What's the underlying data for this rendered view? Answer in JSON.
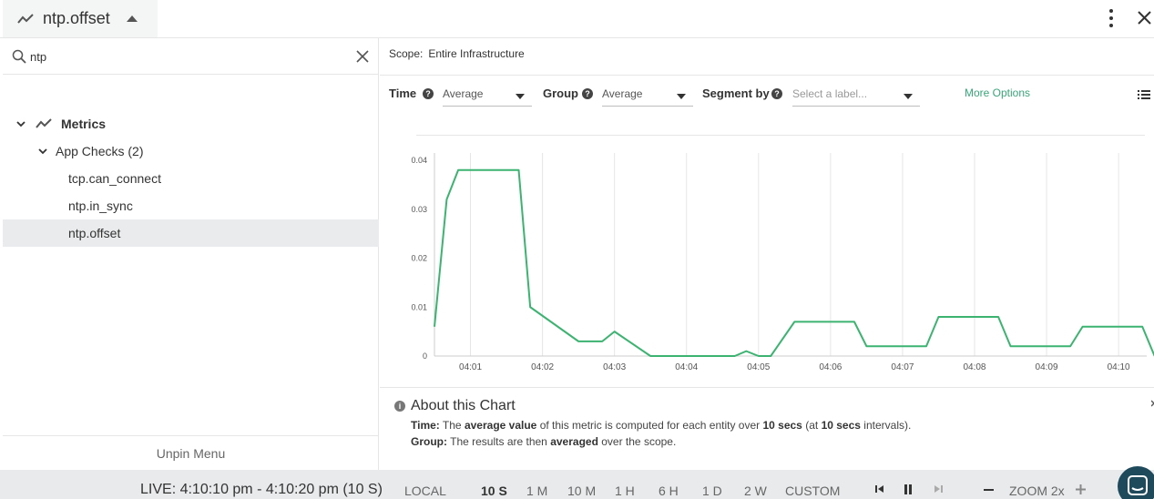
{
  "header": {
    "title": "ntp.offset",
    "icon": "line-chart-icon"
  },
  "search": {
    "value": "ntp",
    "placeholder": ""
  },
  "tree": {
    "metrics_label": "Metrics",
    "group_label": "App Checks (2)",
    "items": [
      "tcp.can_connect",
      "ntp.in_sync",
      "ntp.offset"
    ],
    "selected": "ntp.offset"
  },
  "unpin_label": "Unpin Menu",
  "scope": {
    "label": "Scope:",
    "value": "Entire Infrastructure"
  },
  "options": {
    "time_label": "Time",
    "time_value": "Average",
    "group_label": "Group",
    "group_value": "Average",
    "segment_label": "Segment by",
    "segment_placeholder": "Select a label...",
    "more_options": "More Options"
  },
  "chart_data": {
    "type": "line",
    "ylim": [
      0,
      0.04
    ],
    "yticks": [
      "0.04",
      "0.03",
      "0.02",
      "0.01",
      "0"
    ],
    "xticks": [
      "04:01",
      "04:02",
      "04:03",
      "04:04",
      "04:05",
      "04:06",
      "04:07",
      "04:08",
      "04:09",
      "04:10"
    ],
    "line_color": "#3cb371",
    "x_minutes": [
      0.0,
      0.17,
      0.33,
      1.0,
      1.17,
      1.33,
      2.0,
      2.33,
      2.5,
      3.0,
      3.67,
      4.17,
      4.33,
      4.5,
      4.67,
      5.0,
      5.33,
      5.83,
      6.0,
      6.33,
      6.83,
      7.0,
      7.33,
      7.83,
      8.0,
      8.33,
      8.83,
      9.0,
      9.33,
      9.83,
      10.0
    ],
    "values": [
      0.006,
      0.032,
      0.038,
      0.038,
      0.038,
      0.01,
      0.003,
      0.003,
      0.005,
      0.0,
      0.0,
      0.0,
      0.001,
      0.0,
      0.0,
      0.007,
      0.007,
      0.007,
      0.002,
      0.002,
      0.002,
      0.008,
      0.008,
      0.008,
      0.002,
      0.002,
      0.002,
      0.006,
      0.006,
      0.006,
      0.0
    ]
  },
  "about": {
    "title": "About this Chart",
    "time_prefix": "Time:",
    "time_t1": "The",
    "time_b1": "average value",
    "time_t2": "of this metric is computed for each entity over",
    "time_b2": "10 secs",
    "time_t3": "(at",
    "time_b3": "10 secs",
    "time_t4": "intervals).",
    "group_prefix": "Group:",
    "group_t1": "The results are then",
    "group_b1": "averaged",
    "group_t2": "over the scope."
  },
  "bottom": {
    "live": "LIVE: 4:10:10 pm - 4:10:20 pm (10 S)",
    "local": "LOCAL",
    "ranges": [
      "10 S",
      "1 M",
      "10 M",
      "1 H",
      "6 H",
      "1 D",
      "2 W",
      "CUSTOM"
    ],
    "active_range": "10 S",
    "zoom": "ZOOM 2x"
  }
}
